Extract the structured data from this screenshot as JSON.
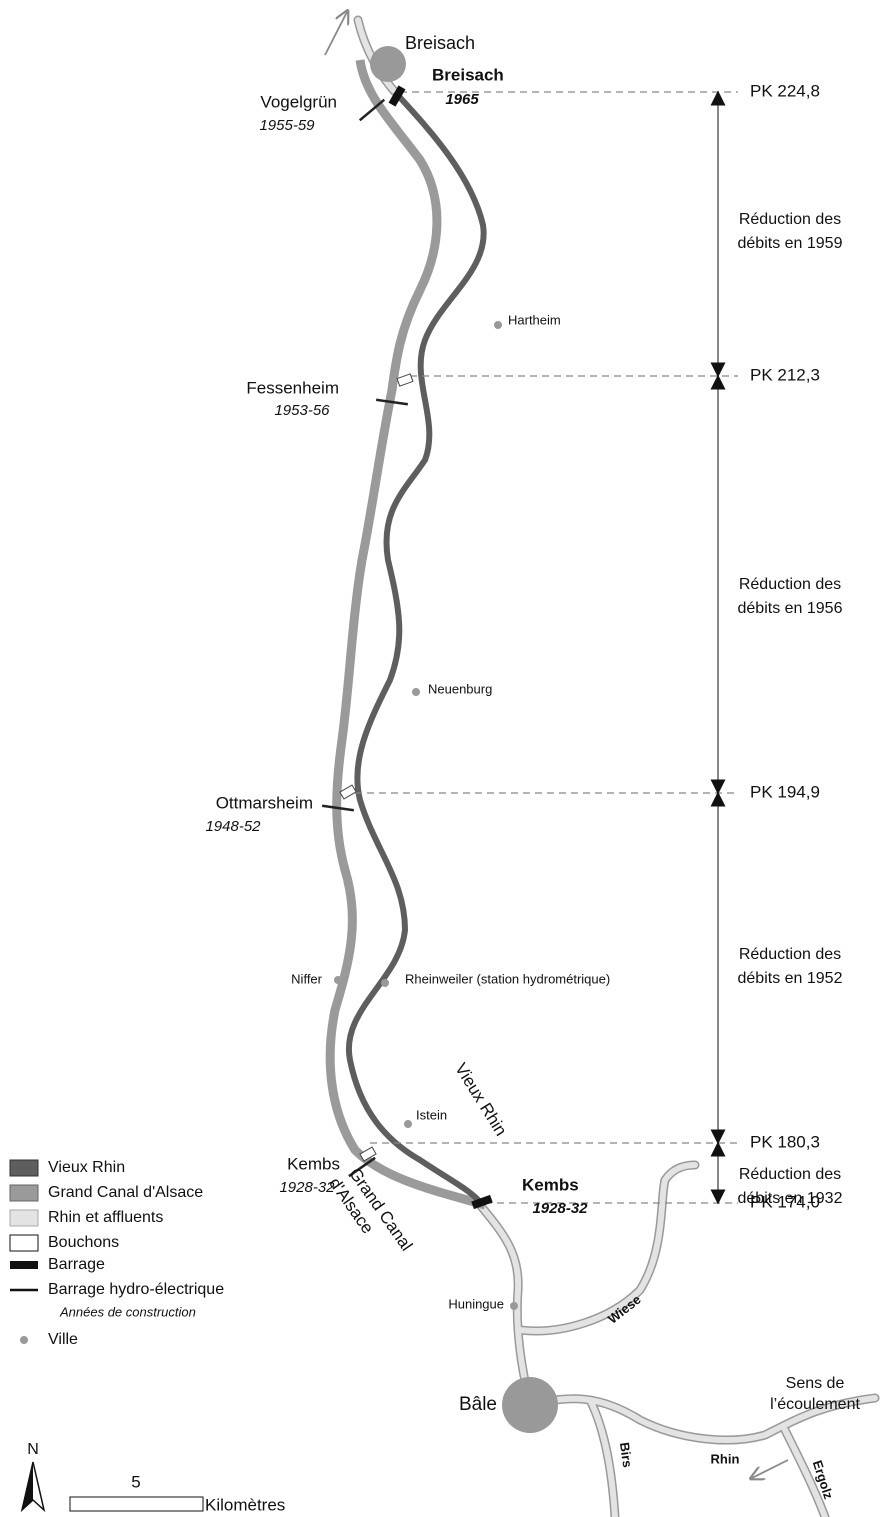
{
  "cities": [
    {
      "name": "Breisach"
    },
    {
      "name": "Hartheim"
    },
    {
      "name": "Neuenburg"
    },
    {
      "name": "Niffer"
    },
    {
      "name": "Rheinweiler (station hydrométrique)"
    },
    {
      "name": "Istein"
    },
    {
      "name": "Huningue"
    },
    {
      "name": "Bâle"
    }
  ],
  "dams": [
    {
      "name": "Breisach",
      "years": "1965"
    },
    {
      "name": "Vogelgrün",
      "years": "1955-59"
    },
    {
      "name": "Fessenheim",
      "years": "1953-56"
    },
    {
      "name": "Ottmarsheim",
      "years": "1948-52"
    },
    {
      "name": "Kembs",
      "years": "1928-32"
    },
    {
      "name": "Kembs",
      "years": "1928-32"
    }
  ],
  "pk": [
    "PK 224,8",
    "PK 212,3",
    "PK 194,9",
    "PK 180,3",
    "PK 174,0"
  ],
  "reductions": [
    [
      "Réduction des",
      "débits en 1959"
    ],
    [
      "Réduction des",
      "débits en 1956"
    ],
    [
      "Réduction des",
      "débits en 1952"
    ],
    [
      "Réduction des",
      "débits en 1932"
    ]
  ],
  "rivers": {
    "vieux_rhin": "Vieux Rhin",
    "grand_canal": [
      "Grand Canal",
      "d'Alsace"
    ],
    "wiese": "Wiese",
    "birs": "Birs",
    "rhin": "Rhin",
    "ergolz": "Ergolz"
  },
  "flow": [
    "Sens de",
    "l’écoulement"
  ],
  "legend": {
    "items": [
      "Vieux Rhin",
      "Grand Canal d'Alsace",
      "Rhin et affluents",
      "Bouchons",
      "Barrage",
      "Barrage hydro-électrique"
    ],
    "years_note": "Années de construction",
    "city": "Ville"
  },
  "scale": {
    "north": "N",
    "distance": "5",
    "unit": "Kilomètres"
  }
}
